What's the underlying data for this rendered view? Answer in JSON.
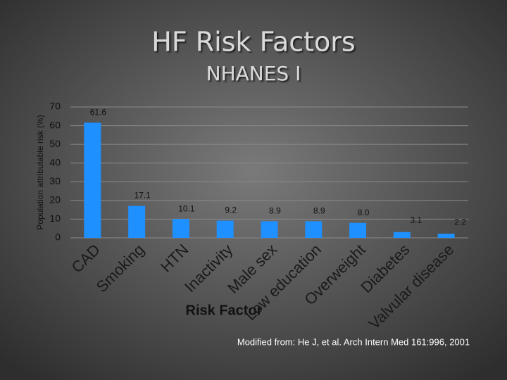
{
  "chart_data": {
    "type": "bar",
    "title": "HF Risk Factors",
    "subtitle": "NHANES I",
    "y_label": "Population attributable risk (%)",
    "x_label": "Risk Factor",
    "note": "Modified from: He J, et al. Arch Intern Med 161:996, 2001",
    "categories": [
      "CAD",
      "Smoking",
      "HTN",
      "Inactivity",
      "Male sex",
      "Low education",
      "Overweight",
      "Diabetes",
      "Valvular disease"
    ],
    "values": [
      61.6,
      17.1,
      10.1,
      9.2,
      8.9,
      8.9,
      8.0,
      3.1,
      2.2
    ],
    "value_labels": [
      "61.6",
      "17.1",
      "10.1",
      "9.2",
      "8.9",
      "8.9",
      "8.0",
      "3.1",
      "2.2"
    ],
    "color": "#1e90ff",
    "ylim": [
      0,
      70
    ],
    "yticks": [
      0,
      10,
      20,
      30,
      40,
      50,
      60,
      70
    ],
    "grid": true
  }
}
